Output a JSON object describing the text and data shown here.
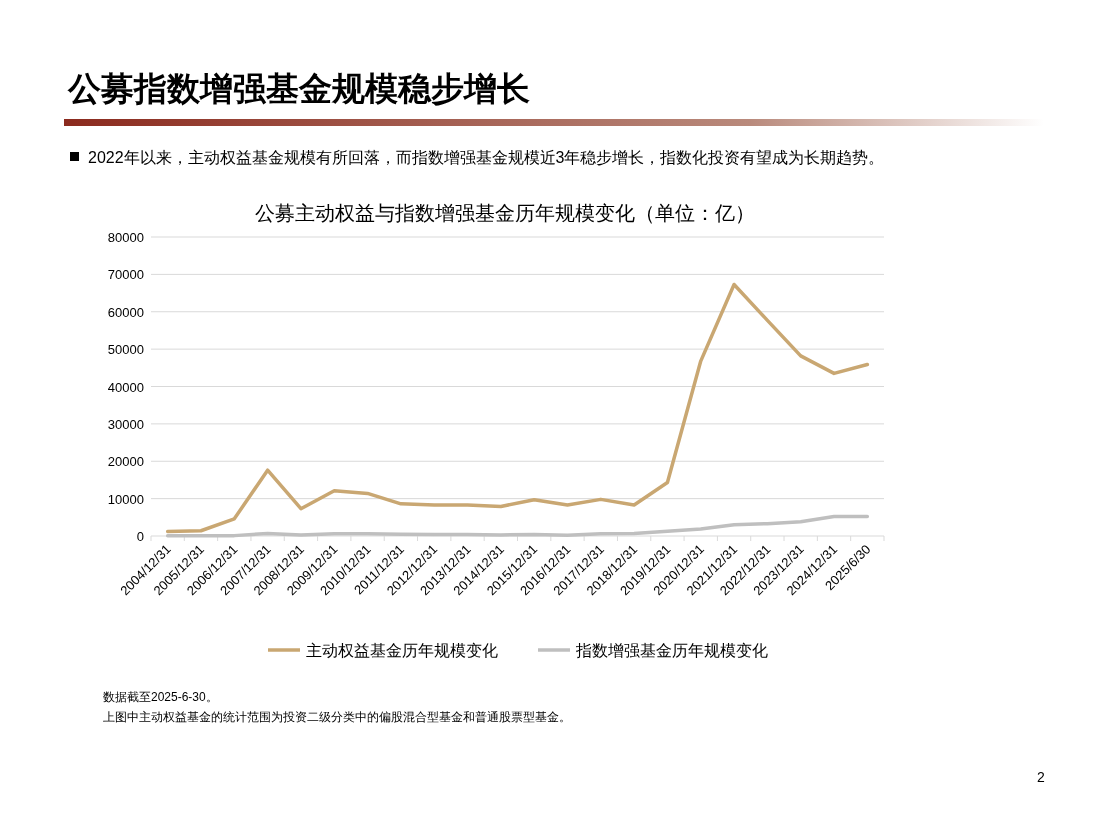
{
  "chart_data": {
    "type": "line",
    "title": "公募指数增强基金规模稳步增长",
    "subtitle": "公募主动权益与指数增强基金历年规模变化（单位：亿）",
    "annotations": [
      "2022年以来，主动权益基金规模有所回落，而指数增强基金规模近3年稳步增长，指数化投资有望成为长期趋势。",
      "数据截至2025-6-30。",
      "上图中主动权益基金的统计范围为投资二级分类中的偏股混合型基金和普通股票型基金。",
      "2"
    ],
    "categories": [
      "2004/12/31",
      "2005/12/31",
      "2006/12/31",
      "2007/12/31",
      "2008/12/31",
      "2009/12/31",
      "2010/12/31",
      "2011/12/31",
      "2012/12/31",
      "2013/12/31",
      "2014/12/31",
      "2015/12/31",
      "2016/12/31",
      "2017/12/31",
      "2018/12/31",
      "2019/12/31",
      "2020/12/31",
      "2021/12/31",
      "2022/12/31",
      "2023/12/31",
      "2024/12/31",
      "2025/6/30"
    ],
    "series": [
      {
        "name": "主动权益基金历年规模变化",
        "color": "#c9a772",
        "values": [
          1200,
          1400,
          4600,
          17600,
          7300,
          12100,
          11400,
          8600,
          8300,
          8300,
          7900,
          9700,
          8300,
          9800,
          8300,
          14300,
          46800,
          67300,
          57700,
          48200,
          43500,
          45900
        ]
      },
      {
        "name": "指数增强基金历年规模变化",
        "color": "#bfbfbf",
        "values": [
          100,
          100,
          100,
          700,
          300,
          600,
          600,
          500,
          400,
          400,
          300,
          400,
          200,
          600,
          700,
          1300,
          1900,
          3000,
          3300,
          3800,
          5200,
          5200
        ]
      }
    ],
    "ylim": [
      0,
      80000
    ],
    "yticks": [
      0,
      10000,
      20000,
      30000,
      40000,
      50000,
      60000,
      70000,
      80000
    ],
    "grid": "y",
    "legend": "bottom",
    "marker": "none",
    "line_style": "solid"
  }
}
